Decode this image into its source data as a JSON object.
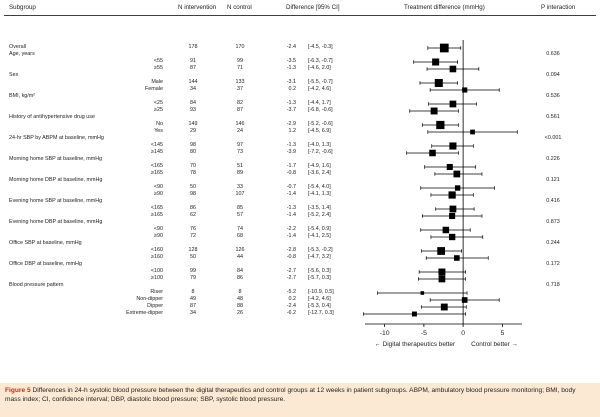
{
  "headers": {
    "subgroup": "Subgroup",
    "n_intervention": "N intervention",
    "n_control": "N control",
    "difference": "Difference [95% CI]",
    "treatment_difference": "Treatment difference (mmHg)",
    "p_interaction": "P interaction"
  },
  "rows": [
    {
      "kind": "data",
      "sub": "",
      "label": "Overall",
      "n_int": "178",
      "n_ctrl": "170",
      "diff": "-2.4",
      "ci": "[-4.5, -0.3]",
      "p": "",
      "est": -2.4,
      "lo": -4.5,
      "hi": -0.3
    },
    {
      "kind": "heading",
      "label": "Age, years",
      "p": "0.636"
    },
    {
      "kind": "data",
      "sub": "<55",
      "label": "",
      "n_int": "91",
      "n_ctrl": "99",
      "diff": "-3.5",
      "ci": "[-6.3, -0.7]",
      "p": "",
      "est": -3.5,
      "lo": -6.3,
      "hi": -0.7
    },
    {
      "kind": "data",
      "sub": "≥55",
      "label": "",
      "n_int": "87",
      "n_ctrl": "71",
      "diff": "-1.3",
      "ci": "[-4.6, 2.0]",
      "p": "",
      "est": -1.3,
      "lo": -4.6,
      "hi": 2.0
    },
    {
      "kind": "heading",
      "label": "Sex",
      "p": "0.094"
    },
    {
      "kind": "data",
      "sub": "Male",
      "label": "",
      "n_int": "144",
      "n_ctrl": "133",
      "diff": "-3.1",
      "ci": "[-5.5, -0.7]",
      "p": "",
      "est": -3.1,
      "lo": -5.5,
      "hi": -0.7
    },
    {
      "kind": "data",
      "sub": "Female",
      "label": "",
      "n_int": "34",
      "n_ctrl": "37",
      "diff": "0.2",
      "ci": "[-4.2, 4.6]",
      "p": "",
      "est": 0.2,
      "lo": -4.2,
      "hi": 4.6
    },
    {
      "kind": "heading",
      "label": "BMI, kg/m²",
      "p": "0.536"
    },
    {
      "kind": "data",
      "sub": "<25",
      "label": "",
      "n_int": "84",
      "n_ctrl": "82",
      "diff": "-1.3",
      "ci": "[-4.4, 1.7]",
      "p": "",
      "est": -1.3,
      "lo": -4.4,
      "hi": 1.7
    },
    {
      "kind": "data",
      "sub": "≥25",
      "label": "",
      "n_int": "93",
      "n_ctrl": "87",
      "diff": "-3.7",
      "ge": "",
      "ci": "[-6.8, -0.6]",
      "p": "",
      "est": -3.7,
      "lo": -6.8,
      "hi": -0.6
    },
    {
      "kind": "heading",
      "label": "History of antihypertensive drug use",
      "p": "0.561"
    },
    {
      "kind": "data",
      "sub": "No",
      "label": "",
      "n_int": "149",
      "n_ctrl": "146",
      "diff": "-2.9",
      "ci": "[-5.2, -0.6]",
      "p": "",
      "est": -2.9,
      "lo": -5.2,
      "hi": -0.6
    },
    {
      "kind": "data",
      "sub": "Yes",
      "label": "",
      "n_int": "29",
      "n_ctrl": "24",
      "diff": "1.2",
      "ci": "[-4.5, 6.9]",
      "p": "",
      "est": 1.2,
      "lo": -4.5,
      "hi": 6.9
    },
    {
      "kind": "heading",
      "label": "24-hr SBP by ABPM at baseline, mmHg",
      "p": "<0.001"
    },
    {
      "kind": "data",
      "sub": "<145",
      "label": "",
      "n_int": "98",
      "n_ctrl": "97",
      "diff": "-1.3",
      "ci": "[-4.0, 1.3]",
      "p": "",
      "est": -1.3,
      "lo": -4.0,
      "hi": 1.3
    },
    {
      "kind": "data",
      "sub": "≥145",
      "label": "",
      "n_int": "80",
      "n_ctrl": "73",
      "diff": "-3.9",
      "ci": "[-7.2, -0.6]",
      "p": "",
      "est": -3.9,
      "lo": -7.2,
      "hi": -0.6
    },
    {
      "kind": "heading",
      "label": "Morning home SBP at baseline, mmHg",
      "p": "0.226"
    },
    {
      "kind": "data",
      "sub": "<165",
      "label": "",
      "n_int": "70",
      "n_ctrl": "51",
      "diff": "-1.7",
      "ci": "[-4.9, 1.6]",
      "p": "",
      "est": -1.7,
      "lo": -4.9,
      "hi": 1.6
    },
    {
      "kind": "data",
      "sub": "≥165",
      "label": "",
      "n_int": "78",
      "n_ctrl": "89",
      "diff": "-0.8",
      "ci": "[-3.6, 2.4]",
      "p": "",
      "est": -0.8,
      "lo": -3.6,
      "hi": 2.4
    },
    {
      "kind": "heading",
      "label": "Morning home DBP at baseline, mmHg",
      "p": "0.121"
    },
    {
      "kind": "data",
      "sub": "<90",
      "label": "",
      "n_int": "50",
      "n_ctrl": "33",
      "diff": "-0.7",
      "ci": "[-5.4, 4.0]",
      "p": "",
      "est": -0.7,
      "lo": -5.4,
      "hi": 4.0
    },
    {
      "kind": "data",
      "sub": "≥90",
      "label": "",
      "n_int": "98",
      "n_ctrl": "107",
      "diff": "-1.4",
      "ci": "[-4.1, 1.3]",
      "p": "",
      "est": -1.4,
      "lo": -4.1,
      "hi": 1.3
    },
    {
      "kind": "heading",
      "label": "Evening home SBP at baseline, mmHg",
      "p": "0.416"
    },
    {
      "kind": "data",
      "sub": "<165",
      "label": "",
      "n_int": "86",
      "n_ctrl": "85",
      "diff": "-1.3",
      "ci": "[-3.5, 1.4]",
      "p": "",
      "est": -1.3,
      "lo": -3.5,
      "hi": 1.4
    },
    {
      "kind": "data",
      "sub": "≥165",
      "label": "",
      "n_int": "62",
      "n_ctrl": "57",
      "diff": "-1.4",
      "ci": "[-5.2, 2.4]",
      "p": "",
      "est": -1.4,
      "lo": -5.2,
      "hi": 2.4
    },
    {
      "kind": "heading",
      "label": "Evening home DBP at baseline, mmHg",
      "p": "0.873"
    },
    {
      "kind": "data",
      "sub": "<90",
      "label": "",
      "n_int": "76",
      "n_ctrl": "74",
      "diff": "-2.2",
      "ci": "[-5.4, 0.9]",
      "p": "",
      "est": -2.2,
      "lo": -5.4,
      "hi": 0.9
    },
    {
      "kind": "data",
      "sub": "≥90",
      "label": "",
      "n_int": "72",
      "n_ctrl": "68",
      "diff": "-1.4",
      "ci": "[-4.1, 2.5]",
      "p": "",
      "est": -1.4,
      "lo": -4.1,
      "hi": 2.5
    },
    {
      "kind": "heading",
      "label": "Office SBP at baseline, mmHg",
      "p": "0.244"
    },
    {
      "kind": "data",
      "sub": "<160",
      "label": "",
      "n_int": "128",
      "n_ctrl": "126",
      "diff": "-2.8",
      "ci": "[-5.3, -0.2]",
      "p": "",
      "est": -2.8,
      "lo": -5.3,
      "hi": -0.2
    },
    {
      "kind": "data",
      "sub": "≥160",
      "label": "",
      "n_int": "50",
      "n_ctrl": "44",
      "diff": "-0.8",
      "ci": "[-4.7, 3.2]",
      "p": "",
      "est": -0.8,
      "lo": -4.7,
      "hi": 3.2
    },
    {
      "kind": "heading",
      "label": "Office DBP at baseline, mmHg",
      "p": "0.172"
    },
    {
      "kind": "data",
      "sub": "<100",
      "label": "",
      "n_int": "99",
      "n_ctrl": "84",
      "diff": "-2.7",
      "ci": "[-5.6, 0.3]",
      "p": "",
      "est": -2.7,
      "lo": -5.6,
      "hi": 0.3
    },
    {
      "kind": "data",
      "sub": "≥100",
      "label": "",
      "n_int": "79",
      "n_ctrl": "86",
      "diff": "-2.7",
      "ci": "[-5.7, 0.3]",
      "p": "",
      "est": -2.7,
      "lo": -5.7,
      "hi": 0.3
    },
    {
      "kind": "heading",
      "label": "Blood pressure pattern",
      "p": "0.718"
    },
    {
      "kind": "data",
      "sub": "Riser",
      "label": "",
      "n_int": "8",
      "n_ctrl": "8",
      "diff": "-5.2",
      "ci": "[-10.9, 0.5]",
      "p": "",
      "est": -5.2,
      "lo": -10.9,
      "hi": 0.5
    },
    {
      "kind": "data",
      "sub": "Non-dipper",
      "label": "",
      "n_int": "49",
      "n_ctrl": "48",
      "diff": "0.2",
      "ci": "[-4.2, 4.6]",
      "p": "",
      "est": 0.2,
      "lo": -4.2,
      "hi": 4.6
    },
    {
      "kind": "data",
      "sub": "Dipper",
      "label": "",
      "n_int": "87",
      "n_ctrl": "88",
      "diff": "-2.4",
      "ci": "[-5.3, 0.4]",
      "p": "",
      "est": -2.4,
      "lo": -5.3,
      "hi": 0.4
    },
    {
      "kind": "data",
      "sub": "Extreme-dipper",
      "label": "",
      "n_int": "34",
      "n_ctrl": "26",
      "diff": "-6.2",
      "ci": "[-12.7, 0.3]",
      "p": "",
      "est": -6.2,
      "lo": -12.7,
      "hi": 0.3
    }
  ],
  "chart_data": {
    "type": "forest",
    "xlabel": "Treatment difference (mmHg)",
    "xlim": [
      -12.5,
      7.5
    ],
    "x_ticks": [
      -10,
      -5,
      0,
      5
    ],
    "reference_line": 0,
    "left_annotation": "← Digital therapeutics better",
    "right_annotation": "Control better →",
    "grid": false
  },
  "caption": {
    "label": "Figure 5",
    "text": " Differences in 24-h systolic blood pressure between the digital therapeutics and control groups at 12 weeks in patient subgroups. ABPM, ambulatory blood pressure monitoring; BMI, body mass index; CI, confidence interval; DBP, diastolic blood pressure; SBP, systolic blood pressure."
  },
  "colors": {
    "marker": "#000000",
    "caption_background": "#fbe9d3",
    "caption_label": "#b63618"
  }
}
